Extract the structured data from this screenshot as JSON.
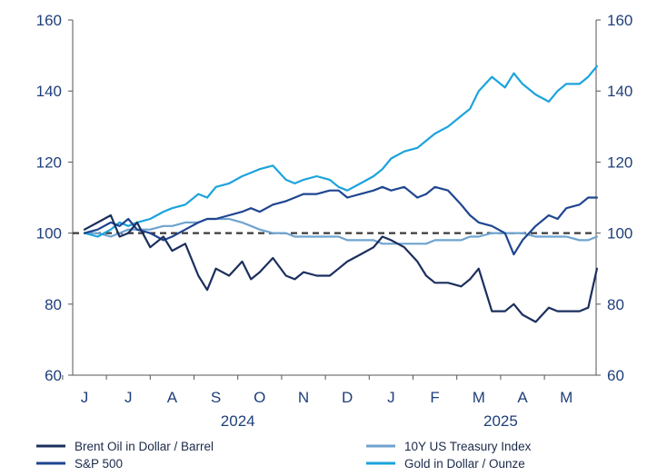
{
  "chart_data": {
    "type": "line",
    "title": "",
    "xlabel": "",
    "ylabel": "",
    "ylim": [
      60,
      160
    ],
    "y_ticks": [
      60,
      80,
      100,
      120,
      140,
      160
    ],
    "y_axes": [
      "left",
      "right"
    ],
    "grid": false,
    "reference_line": {
      "y": 100,
      "style": "dashed",
      "color": "#3a3a3a"
    },
    "month_labels": [
      "J",
      "J",
      "A",
      "S",
      "O",
      "N",
      "D",
      "J",
      "F",
      "M",
      "A",
      "M"
    ],
    "year_labels": [
      {
        "label": "2024",
        "month_index": 3.5
      },
      {
        "label": "2025",
        "month_index": 9.5
      }
    ],
    "legend_position": "bottom",
    "series": [
      {
        "name": "Brent Oil in Dollar / Barrel",
        "color": "#1b2f5e",
        "x": [
          0,
          0.3,
          0.6,
          0.8,
          1.0,
          1.2,
          1.5,
          1.8,
          2.0,
          2.3,
          2.6,
          2.8,
          3.0,
          3.3,
          3.6,
          3.8,
          4.0,
          4.3,
          4.6,
          4.8,
          5.0,
          5.3,
          5.6,
          5.8,
          6.0,
          6.3,
          6.6,
          6.8,
          7.0,
          7.3,
          7.6,
          7.8,
          8.0,
          8.3,
          8.6,
          8.8,
          9.0,
          9.3,
          9.6,
          9.8,
          10.0,
          10.3,
          10.6,
          10.8,
          11.0,
          11.3,
          11.5,
          11.7
        ],
        "values": [
          101,
          103,
          105,
          99,
          100,
          103,
          96,
          99,
          95,
          97,
          88,
          84,
          90,
          88,
          92,
          87,
          89,
          93,
          88,
          87,
          89,
          88,
          88,
          90,
          92,
          94,
          96,
          99,
          98,
          96,
          92,
          88,
          86,
          86,
          85,
          87,
          90,
          78,
          78,
          80,
          77,
          75,
          79,
          78,
          78,
          78,
          79,
          90
        ]
      },
      {
        "name": "S&P 500",
        "color": "#1f4590",
        "x": [
          0,
          0.3,
          0.6,
          0.8,
          1.0,
          1.2,
          1.5,
          1.8,
          2.0,
          2.3,
          2.6,
          2.8,
          3.0,
          3.3,
          3.6,
          3.8,
          4.0,
          4.3,
          4.6,
          4.8,
          5.0,
          5.3,
          5.6,
          5.8,
          6.0,
          6.3,
          6.6,
          6.8,
          7.0,
          7.3,
          7.6,
          7.8,
          8.0,
          8.3,
          8.6,
          8.8,
          9.0,
          9.3,
          9.6,
          9.8,
          10.0,
          10.3,
          10.6,
          10.8,
          11.0,
          11.3,
          11.5,
          11.7
        ],
        "values": [
          100,
          101,
          103,
          102,
          104,
          101,
          100,
          98,
          99,
          101,
          103,
          104,
          104,
          105,
          106,
          107,
          106,
          108,
          109,
          110,
          111,
          111,
          112,
          112,
          110,
          111,
          112,
          113,
          112,
          113,
          110,
          111,
          113,
          112,
          108,
          105,
          103,
          102,
          100,
          94,
          98,
          102,
          105,
          104,
          107,
          108,
          110,
          110
        ]
      },
      {
        "name": "10Y US Treasury Index",
        "color": "#6fa3cf",
        "x": [
          0,
          0.3,
          0.6,
          0.8,
          1.0,
          1.2,
          1.5,
          1.8,
          2.0,
          2.3,
          2.6,
          2.8,
          3.0,
          3.3,
          3.6,
          3.8,
          4.0,
          4.3,
          4.6,
          4.8,
          5.0,
          5.3,
          5.6,
          5.8,
          6.0,
          6.3,
          6.6,
          6.8,
          7.0,
          7.3,
          7.6,
          7.8,
          8.0,
          8.3,
          8.6,
          8.8,
          9.0,
          9.3,
          9.6,
          9.8,
          10.0,
          10.3,
          10.6,
          10.8,
          11.0,
          11.3,
          11.5,
          11.7
        ],
        "values": [
          100,
          100,
          99,
          100,
          101,
          101,
          101,
          102,
          102,
          103,
          103,
          104,
          104,
          104,
          103,
          102,
          101,
          100,
          100,
          99,
          99,
          99,
          99,
          99,
          98,
          98,
          98,
          97,
          97,
          97,
          97,
          97,
          98,
          98,
          98,
          99,
          99,
          100,
          100,
          100,
          100,
          99,
          99,
          99,
          99,
          98,
          98,
          99
        ]
      },
      {
        "name": "Gold in Dollar / Ounze",
        "color": "#1ba3dc",
        "x": [
          0,
          0.3,
          0.6,
          0.8,
          1.0,
          1.2,
          1.5,
          1.8,
          2.0,
          2.3,
          2.6,
          2.8,
          3.0,
          3.3,
          3.6,
          3.8,
          4.0,
          4.3,
          4.6,
          4.8,
          5.0,
          5.3,
          5.6,
          5.8,
          6.0,
          6.3,
          6.6,
          6.8,
          7.0,
          7.3,
          7.6,
          7.8,
          8.0,
          8.3,
          8.6,
          8.8,
          9.0,
          9.3,
          9.6,
          9.8,
          10.0,
          10.3,
          10.6,
          10.8,
          11.0,
          11.3,
          11.5,
          11.7
        ],
        "values": [
          100,
          99,
          101,
          103,
          102,
          103,
          104,
          106,
          107,
          108,
          111,
          110,
          113,
          114,
          116,
          117,
          118,
          119,
          115,
          114,
          115,
          116,
          115,
          113,
          112,
          114,
          116,
          118,
          121,
          123,
          124,
          126,
          128,
          130,
          133,
          135,
          140,
          144,
          141,
          145,
          142,
          139,
          137,
          140,
          142,
          142,
          144,
          147
        ]
      }
    ]
  }
}
